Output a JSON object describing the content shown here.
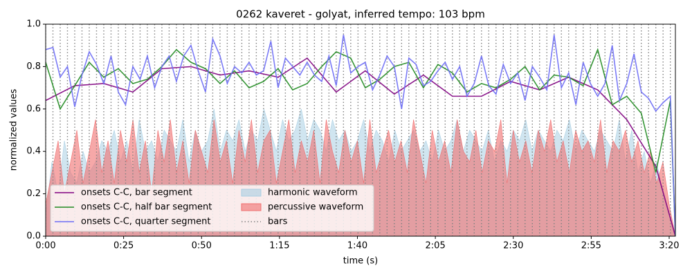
{
  "chart_data": {
    "type": "line",
    "title": "0262 kaveret - golyat, inferred tempo: 103 bpm",
    "xlabel": "time (s)",
    "ylabel": "normalized values",
    "xlim": [
      0,
      202
    ],
    "ylim": [
      0,
      1
    ],
    "xticks": [
      {
        "value": 0,
        "label": "0:00"
      },
      {
        "value": 25,
        "label": "0:25"
      },
      {
        "value": 50,
        "label": "0:50"
      },
      {
        "value": 75,
        "label": "1:15"
      },
      {
        "value": 100,
        "label": "1:40"
      },
      {
        "value": 125,
        "label": "2:05"
      },
      {
        "value": 150,
        "label": "2:30"
      },
      {
        "value": 175,
        "label": "2:55"
      },
      {
        "value": 200,
        "label": "3:20"
      }
    ],
    "yticks": [
      {
        "value": 0,
        "label": "0.0"
      },
      {
        "value": 0.2,
        "label": "0.2"
      },
      {
        "value": 0.4,
        "label": "0.4"
      },
      {
        "value": 0.6,
        "label": "0.6"
      },
      {
        "value": 0.8,
        "label": "0.8"
      },
      {
        "value": 1,
        "label": "1.0"
      }
    ],
    "legend": "lower left",
    "areas": [
      {
        "name": "harmonic waveform",
        "color": "#a9cfe3",
        "x": [
          0,
          2,
          4,
          6,
          8,
          10,
          12,
          14,
          16,
          18,
          20,
          22,
          24,
          26,
          28,
          30,
          32,
          34,
          36,
          38,
          40,
          42,
          44,
          46,
          48,
          50,
          52,
          54,
          56,
          58,
          60,
          62,
          64,
          66,
          68,
          70,
          72,
          74,
          76,
          78,
          80,
          82,
          84,
          86,
          88,
          90,
          92,
          94,
          96,
          98,
          100,
          102,
          104,
          106,
          108,
          110,
          112,
          114,
          116,
          118,
          120,
          122,
          124,
          126,
          128,
          130,
          132,
          134,
          136,
          138,
          140,
          142,
          144,
          146,
          148,
          150,
          152,
          154,
          156,
          158,
          160,
          162,
          164,
          166,
          168,
          170,
          172,
          174,
          176,
          178,
          180,
          182,
          184,
          186,
          188,
          190,
          192,
          194,
          196,
          198,
          200,
          202
        ],
        "values": [
          0.1,
          0.35,
          0.2,
          0.45,
          0.3,
          0.25,
          0.4,
          0.3,
          0.35,
          0.45,
          0.4,
          0.5,
          0.35,
          0.45,
          0.3,
          0.55,
          0.4,
          0.45,
          0.35,
          0.5,
          0.45,
          0.4,
          0.55,
          0.35,
          0.5,
          0.4,
          0.45,
          0.6,
          0.4,
          0.5,
          0.45,
          0.55,
          0.4,
          0.5,
          0.45,
          0.6,
          0.5,
          0.4,
          0.55,
          0.45,
          0.5,
          0.6,
          0.45,
          0.55,
          0.5,
          0.4,
          0.55,
          0.45,
          0.5,
          0.4,
          0.45,
          0.55,
          0.4,
          0.5,
          0.45,
          0.35,
          0.5,
          0.4,
          0.45,
          0.5,
          0.4,
          0.45,
          0.35,
          0.5,
          0.4,
          0.45,
          0.55,
          0.4,
          0.5,
          0.45,
          0.4,
          0.5,
          0.35,
          0.45,
          0.4,
          0.5,
          0.45,
          0.55,
          0.4,
          0.5,
          0.45,
          0.4,
          0.5,
          0.45,
          0.55,
          0.4,
          0.5,
          0.45,
          0.4,
          0.5,
          0.45,
          0.4,
          0.55,
          0.35,
          0.5,
          0.3,
          0.4,
          0.25,
          0.35,
          0.2,
          0.1,
          0
        ]
      },
      {
        "name": "percussive waveform",
        "color": "#f06e6e",
        "x": [
          0,
          2,
          4,
          6,
          8,
          10,
          12,
          14,
          16,
          18,
          20,
          22,
          24,
          26,
          28,
          30,
          32,
          34,
          36,
          38,
          40,
          42,
          44,
          46,
          48,
          50,
          52,
          54,
          56,
          58,
          60,
          62,
          64,
          66,
          68,
          70,
          72,
          74,
          76,
          78,
          80,
          82,
          84,
          86,
          88,
          90,
          92,
          94,
          96,
          98,
          100,
          102,
          104,
          106,
          108,
          110,
          112,
          114,
          116,
          118,
          120,
          122,
          124,
          126,
          128,
          130,
          132,
          134,
          136,
          138,
          140,
          142,
          144,
          146,
          148,
          150,
          152,
          154,
          156,
          158,
          160,
          162,
          164,
          166,
          168,
          170,
          172,
          174,
          176,
          178,
          180,
          182,
          184,
          186,
          188,
          190,
          192,
          194,
          196,
          198,
          200,
          202
        ],
        "values": [
          0.15,
          0.3,
          0.45,
          0.2,
          0.35,
          0.5,
          0.25,
          0.4,
          0.55,
          0.3,
          0.45,
          0.25,
          0.5,
          0.35,
          0.55,
          0.3,
          0.45,
          0.2,
          0.5,
          0.35,
          0.55,
          0.3,
          0.45,
          0.25,
          0.5,
          0.4,
          0.3,
          0.55,
          0.35,
          0.45,
          0.25,
          0.5,
          0.35,
          0.55,
          0.3,
          0.45,
          0.5,
          0.25,
          0.4,
          0.55,
          0.3,
          0.45,
          0.35,
          0.5,
          0.25,
          0.55,
          0.4,
          0.3,
          0.5,
          0.35,
          0.45,
          0.25,
          0.55,
          0.3,
          0.4,
          0.5,
          0.35,
          0.45,
          0.3,
          0.55,
          0.4,
          0.25,
          0.5,
          0.35,
          0.45,
          0.3,
          0.55,
          0.4,
          0.35,
          0.5,
          0.3,
          0.45,
          0.4,
          0.55,
          0.25,
          0.5,
          0.35,
          0.45,
          0.3,
          0.5,
          0.4,
          0.55,
          0.35,
          0.45,
          0.3,
          0.5,
          0.4,
          0.45,
          0.35,
          0.55,
          0.3,
          0.45,
          0.4,
          0.5,
          0.35,
          0.45,
          0.3,
          0.4,
          0.25,
          0.35,
          0.15,
          0
        ]
      }
    ],
    "series": [
      {
        "name": "onsets C-C, bar segment",
        "color": "#800080",
        "x": [
          0,
          9.32,
          18.64,
          27.96,
          37.28,
          46.6,
          55.92,
          65.24,
          74.56,
          83.88,
          93.2,
          102.52,
          111.84,
          121.16,
          130.48,
          139.8,
          149.12,
          158.44,
          167.76,
          177.08,
          186.4,
          195.72,
          202
        ],
        "values": [
          0.64,
          0.71,
          0.72,
          0.68,
          0.79,
          0.8,
          0.76,
          0.78,
          0.75,
          0.84,
          0.68,
          0.78,
          0.67,
          0.76,
          0.66,
          0.66,
          0.73,
          0.69,
          0.75,
          0.69,
          0.55,
          0.33,
          0
        ]
      },
      {
        "name": "onsets C-C, half bar segment",
        "color": "#1f8a1f",
        "x": [
          0,
          4.66,
          9.32,
          13.98,
          18.64,
          23.3,
          27.96,
          32.62,
          37.28,
          41.94,
          46.6,
          51.26,
          55.92,
          60.58,
          65.24,
          69.9,
          74.56,
          79.22,
          83.88,
          88.54,
          93.2,
          97.86,
          102.52,
          107.18,
          111.84,
          116.5,
          121.16,
          125.82,
          130.48,
          135.14,
          139.8,
          144.46,
          149.12,
          153.78,
          158.44,
          163.1,
          167.76,
          172.42,
          177.08,
          181.74,
          186.4,
          191.06,
          195.72,
          200.38,
          202
        ],
        "values": [
          0.82,
          0.6,
          0.71,
          0.82,
          0.75,
          0.79,
          0.72,
          0.74,
          0.8,
          0.88,
          0.82,
          0.79,
          0.72,
          0.78,
          0.7,
          0.73,
          0.79,
          0.69,
          0.72,
          0.8,
          0.87,
          0.84,
          0.7,
          0.74,
          0.8,
          0.82,
          0.7,
          0.81,
          0.77,
          0.68,
          0.72,
          0.7,
          0.74,
          0.8,
          0.69,
          0.76,
          0.75,
          0.71,
          0.88,
          0.62,
          0.66,
          0.58,
          0.3,
          0.64,
          0
        ]
      },
      {
        "name": "onsets C-C, quarter segment",
        "color": "#6b6bf5",
        "x": [
          0,
          2.33,
          4.66,
          6.99,
          9.32,
          11.65,
          13.98,
          16.31,
          18.64,
          20.97,
          23.3,
          25.63,
          27.96,
          30.29,
          32.62,
          34.95,
          37.28,
          39.61,
          41.94,
          44.27,
          46.6,
          48.93,
          51.26,
          53.59,
          55.92,
          58.25,
          60.58,
          62.91,
          65.24,
          67.57,
          69.9,
          72.23,
          74.56,
          76.89,
          79.22,
          81.55,
          83.88,
          86.21,
          88.54,
          90.87,
          93.2,
          95.53,
          97.86,
          100.19,
          102.52,
          104.85,
          107.18,
          109.51,
          111.84,
          114.17,
          116.5,
          118.83,
          121.16,
          123.49,
          125.82,
          128.15,
          130.48,
          132.81,
          135.14,
          137.47,
          139.8,
          142.13,
          144.46,
          146.79,
          149.12,
          151.45,
          153.78,
          156.11,
          158.44,
          160.77,
          163.1,
          165.43,
          167.76,
          170.09,
          172.42,
          174.75,
          177.08,
          179.41,
          181.74,
          184.07,
          186.4,
          188.73,
          191.06,
          193.39,
          195.72,
          198.05,
          200.38,
          202
        ],
        "values": [
          0.88,
          0.89,
          0.75,
          0.8,
          0.61,
          0.76,
          0.87,
          0.81,
          0.72,
          0.85,
          0.68,
          0.62,
          0.8,
          0.74,
          0.85,
          0.7,
          0.8,
          0.85,
          0.73,
          0.85,
          0.9,
          0.78,
          0.68,
          0.93,
          0.85,
          0.72,
          0.8,
          0.77,
          0.82,
          0.76,
          0.78,
          0.92,
          0.7,
          0.84,
          0.8,
          0.76,
          0.82,
          0.76,
          0.73,
          0.85,
          0.71,
          0.95,
          0.77,
          0.8,
          0.82,
          0.69,
          0.76,
          0.85,
          0.8,
          0.6,
          0.84,
          0.81,
          0.71,
          0.73,
          0.78,
          0.82,
          0.74,
          0.8,
          0.66,
          0.72,
          0.85,
          0.71,
          0.67,
          0.81,
          0.72,
          0.77,
          0.64,
          0.8,
          0.75,
          0.69,
          0.95,
          0.7,
          0.77,
          0.62,
          0.82,
          0.72,
          0.66,
          0.72,
          0.9,
          0.64,
          0.72,
          0.86,
          0.68,
          0.65,
          0.59,
          0.63,
          0.66,
          0
        ]
      }
    ],
    "bars": {
      "name": "bars",
      "color": "#808080",
      "x": [
        0,
        2.33,
        4.66,
        6.99,
        9.32,
        11.65,
        13.98,
        16.31,
        18.64,
        20.97,
        23.3,
        25.63,
        27.96,
        30.29,
        32.62,
        34.95,
        37.28,
        39.61,
        41.94,
        44.27,
        46.6,
        48.93,
        51.26,
        53.59,
        55.92,
        58.25,
        60.58,
        62.91,
        65.24,
        67.57,
        69.9,
        72.23,
        74.56,
        76.89,
        79.22,
        81.55,
        83.88,
        86.21,
        88.54,
        90.87,
        93.2,
        95.53,
        97.86,
        100.19,
        102.52,
        104.85,
        107.18,
        109.51,
        111.84,
        114.17,
        116.5,
        118.83,
        121.16,
        123.49,
        125.82,
        128.15,
        130.48,
        132.81,
        135.14,
        137.47,
        139.8,
        142.13,
        144.46,
        146.79,
        149.12,
        151.45,
        153.78,
        156.11,
        158.44,
        160.77,
        163.1,
        165.43,
        167.76,
        170.09,
        172.42,
        174.75,
        177.08,
        179.41,
        181.74,
        184.07,
        186.4,
        188.73,
        191.06,
        193.39,
        195.72,
        198.05,
        200.38
      ]
    }
  }
}
